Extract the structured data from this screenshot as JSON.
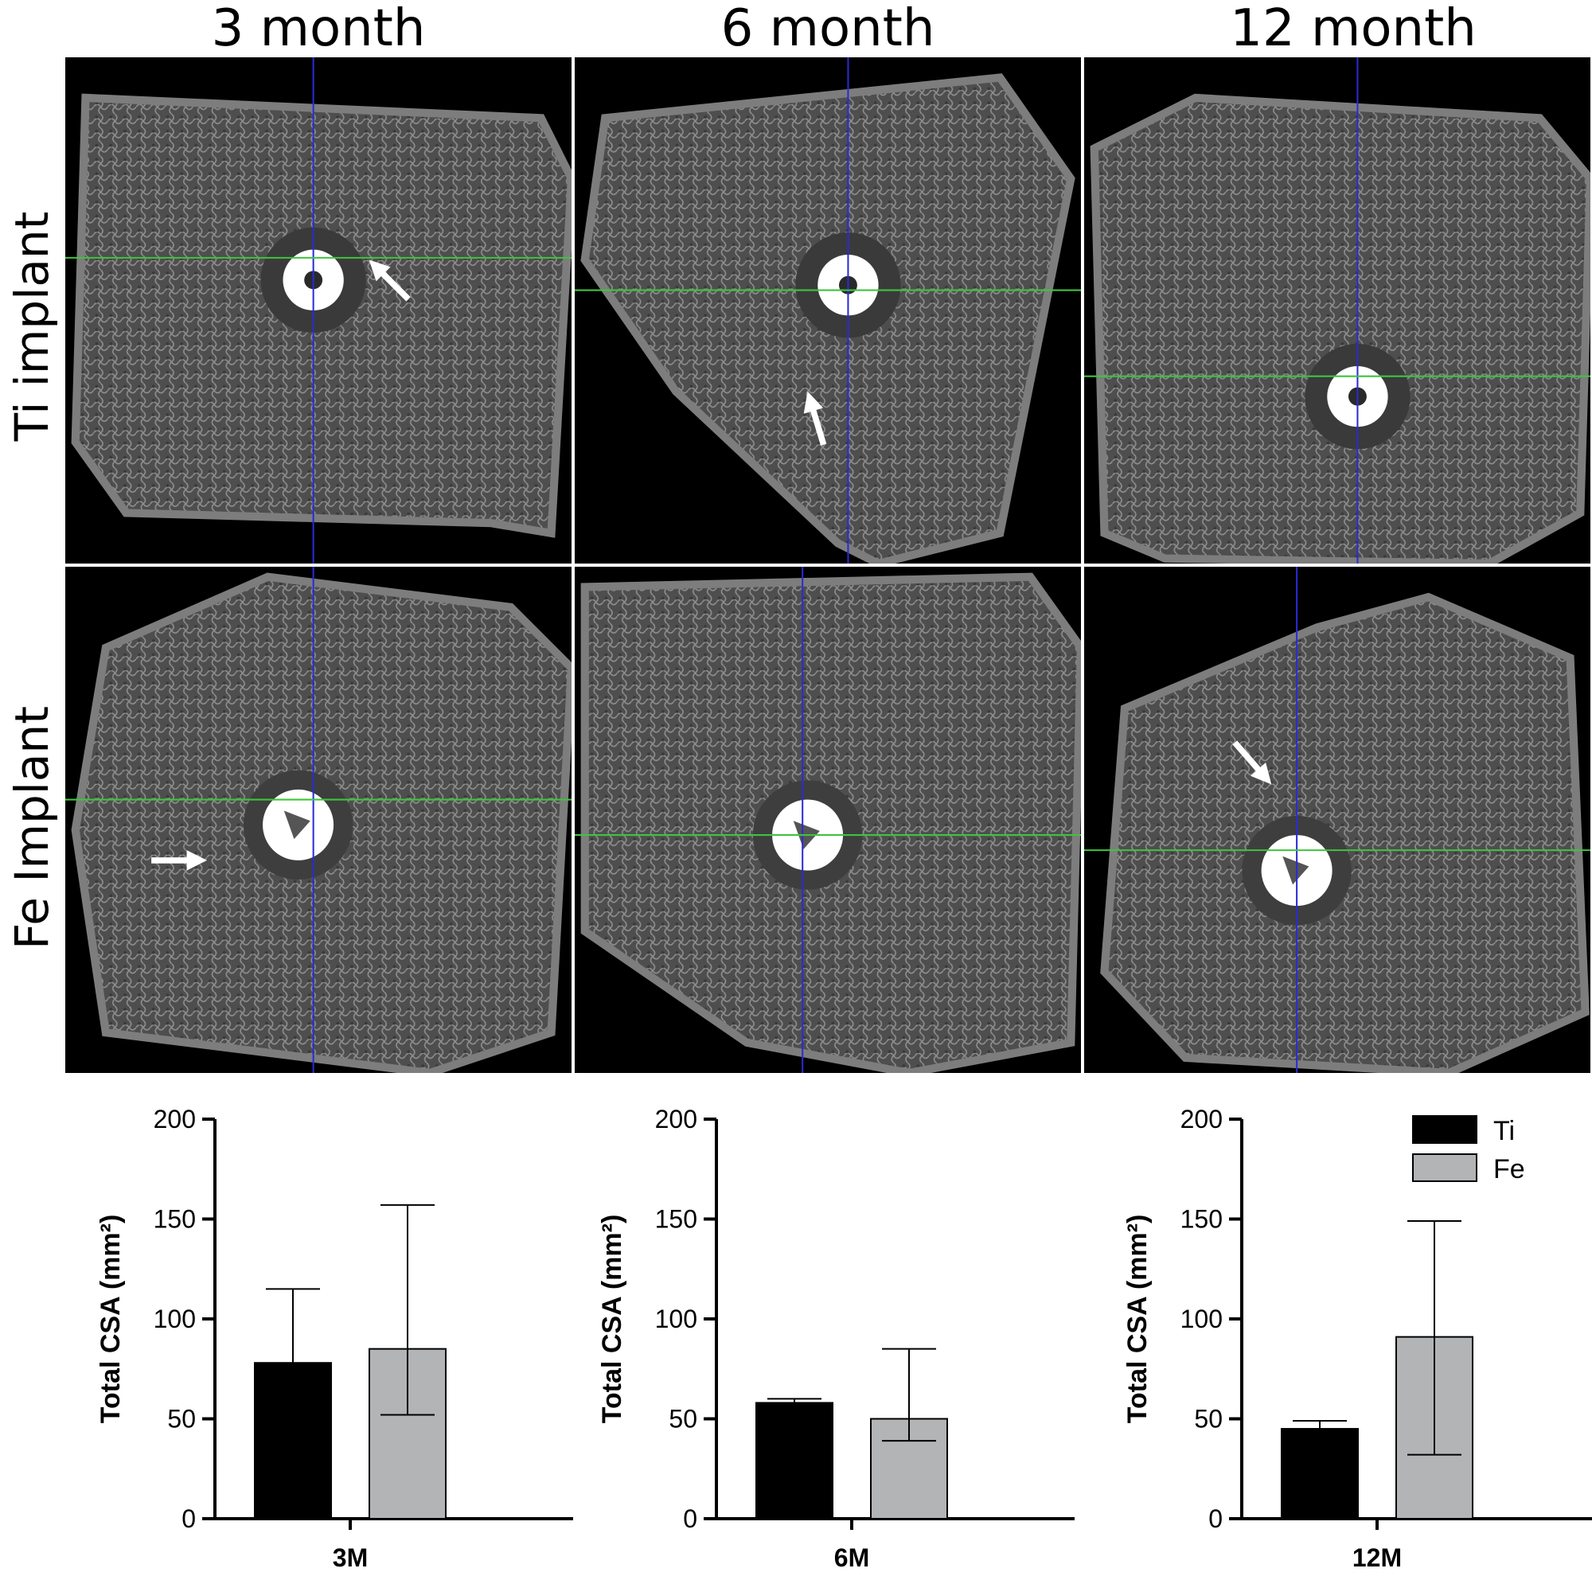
{
  "columns": [
    "3 month",
    "6 month",
    "12 month"
  ],
  "rows": [
    "Ti implant",
    "Fe Implant"
  ],
  "panels": [
    {
      "row": 0,
      "col": 0,
      "implant": "ti",
      "arrow": "nw"
    },
    {
      "row": 0,
      "col": 1,
      "implant": "ti",
      "arrow": "n"
    },
    {
      "row": 0,
      "col": 2,
      "implant": "ti",
      "arrow": "none"
    },
    {
      "row": 1,
      "col": 0,
      "implant": "fe",
      "arrow": "e"
    },
    {
      "row": 1,
      "col": 1,
      "implant": "fe",
      "arrow": "none"
    },
    {
      "row": 1,
      "col": 2,
      "implant": "fe",
      "arrow": "se"
    }
  ],
  "colors": {
    "ti_bar": "#000000",
    "fe_bar": "#b3b4b6",
    "crosshair_v": "#2b2bd6",
    "crosshair_h": "#3ec43e"
  },
  "chart_data": [
    {
      "type": "bar",
      "categories": [
        "3M"
      ],
      "ylabel": "Total CSA (mm²)",
      "ylim": [
        0,
        200
      ],
      "yticks": [
        0,
        50,
        100,
        150,
        200
      ],
      "series": [
        {
          "name": "Ti",
          "values": [
            78
          ],
          "error": [
            37
          ]
        },
        {
          "name": "Fe",
          "values": [
            85
          ],
          "error": [
            72,
            33
          ]
        }
      ]
    },
    {
      "type": "bar",
      "categories": [
        "6M"
      ],
      "ylabel": "Total CSA (mm²)",
      "ylim": [
        0,
        200
      ],
      "yticks": [
        0,
        50,
        100,
        150,
        200
      ],
      "series": [
        {
          "name": "Ti",
          "values": [
            58
          ],
          "error": [
            2
          ]
        },
        {
          "name": "Fe",
          "values": [
            50
          ],
          "error": [
            35,
            11
          ]
        }
      ]
    },
    {
      "type": "bar",
      "categories": [
        "12M"
      ],
      "ylabel": "Total CSA (mm²)",
      "ylim": [
        0,
        200
      ],
      "yticks": [
        0,
        50,
        100,
        150,
        200
      ],
      "legend": [
        "Ti",
        "Fe"
      ],
      "series": [
        {
          "name": "Ti",
          "values": [
            45
          ],
          "error": [
            4
          ]
        },
        {
          "name": "Fe",
          "values": [
            91
          ],
          "error": [
            58,
            59
          ]
        }
      ]
    }
  ]
}
